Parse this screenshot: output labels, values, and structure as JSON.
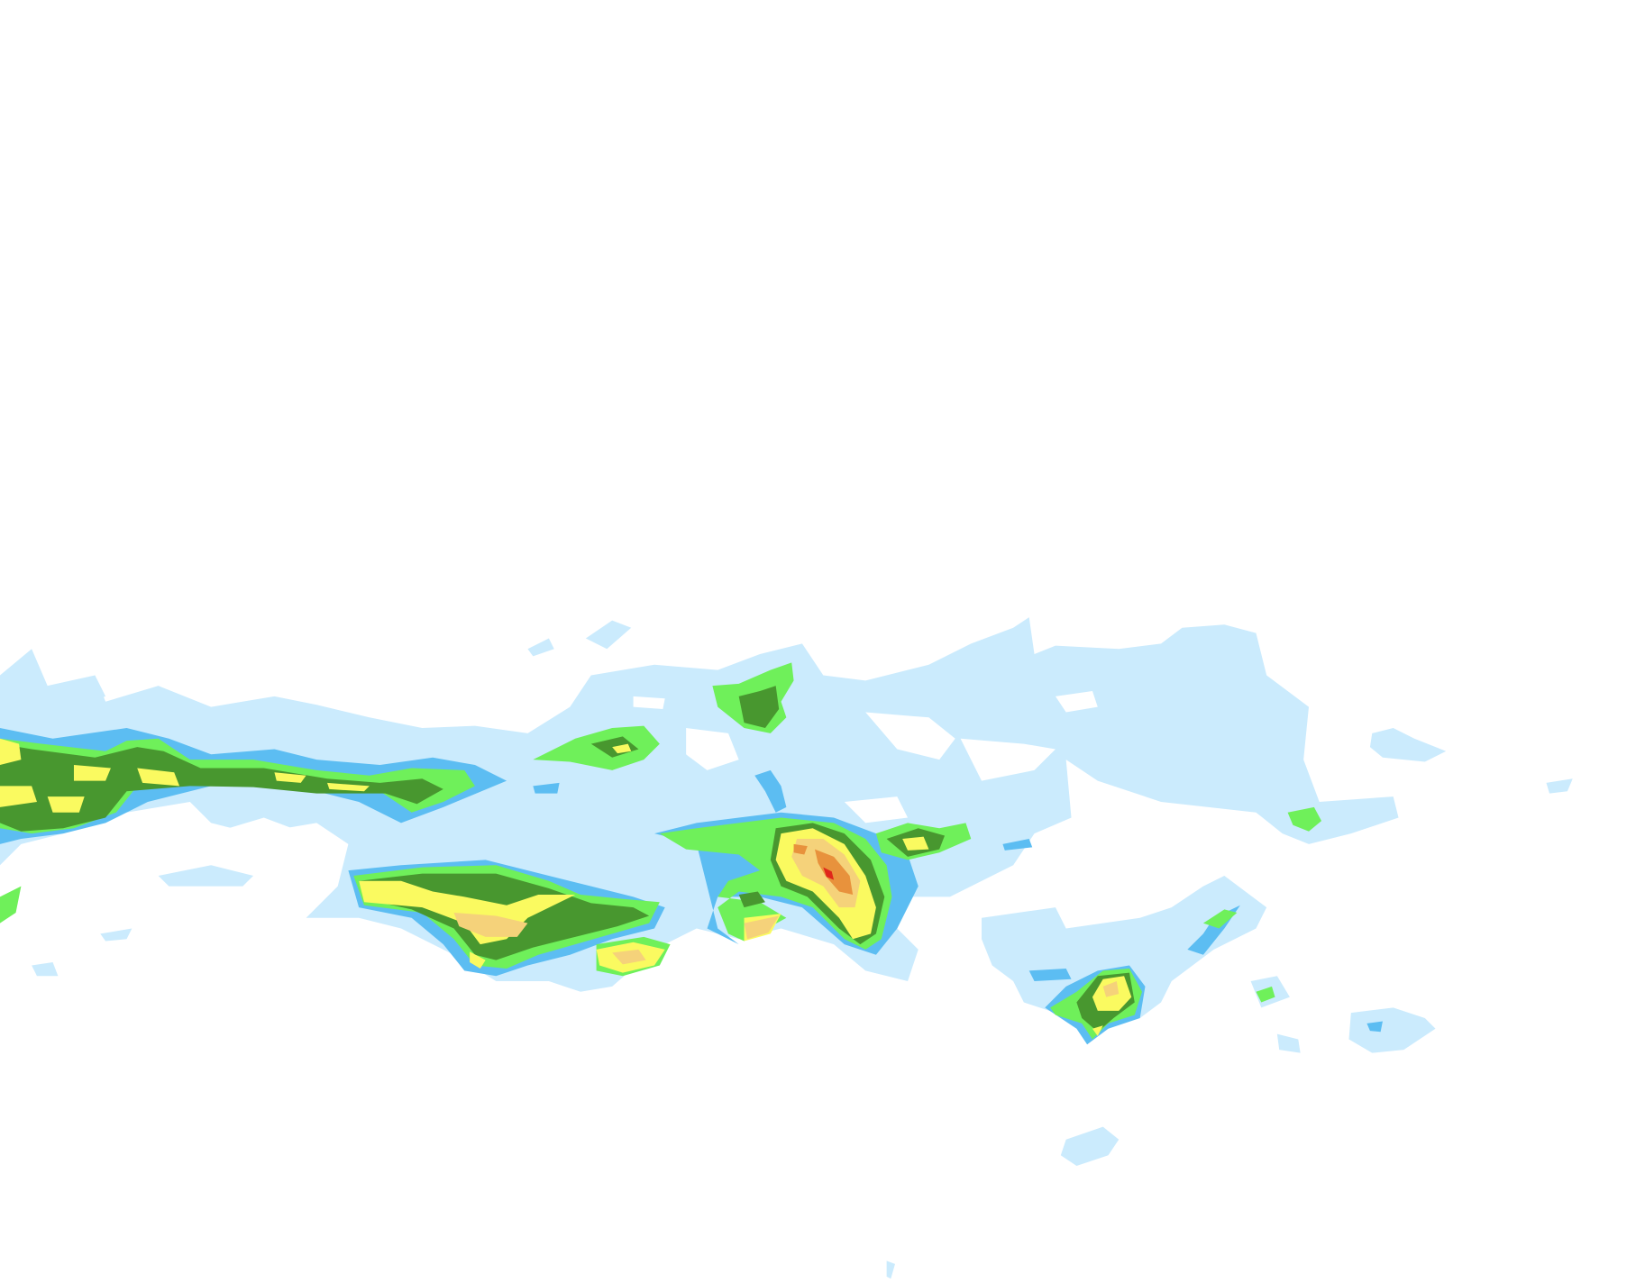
{
  "map": {
    "layer": "radar-precipitation",
    "background": "#ffffff",
    "intensity_colors": {
      "very_light": "#cbebfd",
      "light": "#5cbdf2",
      "moderate": "#6ff05a",
      "moderate_heavy": "#48972f",
      "heavy": "#fafa60",
      "very_heavy": "#f5d27a",
      "intense": "#e8923c",
      "extreme": "#e0261a"
    },
    "text": []
  }
}
